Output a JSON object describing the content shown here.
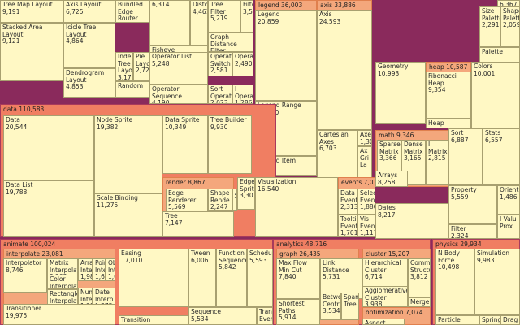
{
  "colors": {
    "background": "#8a2a5c",
    "leaf": "#fff8c4",
    "depth1": "#f07e62",
    "depth2": "#f4a77c",
    "depth3": "#f8c89a",
    "depth1_border": "#a83a5c",
    "depth2_border": "#e0804e",
    "depth3_border": "#d89060"
  },
  "chart_data": {
    "type": "treemap",
    "nodes": [
      {
        "name": "Tree Map Layout",
        "value": "9,191",
        "depth": 4
      },
      {
        "name": "Axis Layout",
        "value": "6,725",
        "depth": 4
      },
      {
        "name": "Bundled Edge Router",
        "value": "3,727",
        "depth": 4
      },
      {
        "name": "Stacked Area Layout",
        "value": "9,121",
        "depth": 4
      },
      {
        "name": "Icicle Tree Layout",
        "value": "4,864",
        "depth": 4
      },
      {
        "name": "Inden Tree Layou",
        "value": "3,174",
        "depth": 4
      },
      {
        "name": "Pie Layo",
        "value": "2,72",
        "depth": 4
      },
      {
        "name": "Dendrogram Layout",
        "value": "4,853",
        "depth": 4
      },
      {
        "name": "Random",
        "value": "",
        "depth": 4
      },
      {
        "name": "",
        "value": "6,314",
        "depth": 4
      },
      {
        "name": "Distortio",
        "value": "4,461",
        "depth": 4
      },
      {
        "name": "Fisheye Distortion",
        "value": "",
        "depth": 4
      },
      {
        "name": "Tree Filter",
        "value": "5,219",
        "depth": 4
      },
      {
        "name": "Filter",
        "value": "3,509",
        "depth": 4
      },
      {
        "name": "Graph Distance Filter",
        "value": "",
        "depth": 4
      },
      {
        "name": "Operator List",
        "value": "5,248",
        "depth": 4
      },
      {
        "name": "Operator Switch",
        "value": "2,581",
        "depth": 4
      },
      {
        "name": "Operator",
        "value": "2,490",
        "depth": 4
      },
      {
        "name": "Operator Sequence",
        "value": "4,190",
        "depth": 4
      },
      {
        "name": "Sort Operator",
        "value": "2,023",
        "depth": 4
      },
      {
        "name": "I Operat",
        "value": "1,286",
        "depth": 4
      },
      {
        "name": "legend",
        "value": "36,003",
        "depth": 2
      },
      {
        "name": "Legend",
        "value": "20,859",
        "depth": 3
      },
      {
        "name": "Legend Range",
        "value": "10,530",
        "depth": 3
      },
      {
        "name": "Legend Item",
        "value": "4,614",
        "depth": 3
      },
      {
        "name": "axis",
        "value": "33,886",
        "depth": 2
      },
      {
        "name": "Axis",
        "value": "24,593",
        "depth": 3
      },
      {
        "name": "Cartesian Axes",
        "value": "6,703",
        "depth": 3
      },
      {
        "name": "Axes",
        "value": "1,302",
        "depth": 3
      },
      {
        "name": "Ax Gri La",
        "value": "",
        "depth": 3
      },
      {
        "name": "data",
        "value": "110,583",
        "depth": 1
      },
      {
        "name": "Data",
        "value": "20,544",
        "depth": 2
      },
      {
        "name": "Node Sprite",
        "value": "19,382",
        "depth": 2
      },
      {
        "name": "Data Sprite",
        "value": "10,349",
        "depth": 2
      },
      {
        "name": "Tree Builder",
        "value": "9,930",
        "depth": 2
      },
      {
        "name": "Data List",
        "value": "19,788",
        "depth": 2
      },
      {
        "name": "Scale Binding",
        "value": "11,275",
        "depth": 2
      },
      {
        "name": "render",
        "value": "8,867",
        "depth": 2
      },
      {
        "name": "Edge Renderer",
        "value": "5,569",
        "depth": 3
      },
      {
        "name": "Shape Rende",
        "value": "2,247",
        "depth": 3
      },
      {
        "name": "Ar Ty",
        "value": "",
        "depth": 3
      },
      {
        "name": "Edge Sprite",
        "value": "3,301",
        "depth": 2
      },
      {
        "name": "Tree",
        "value": "7,147",
        "depth": 2
      },
      {
        "name": "Visualization",
        "value": "16,540",
        "depth": 2
      },
      {
        "name": "events",
        "value": "7,0",
        "depth": 2
      },
      {
        "name": "Data Event",
        "value": "2,313",
        "depth": 3
      },
      {
        "name": "Selec Event",
        "value": "1,880",
        "depth": 3
      },
      {
        "name": "Tooltip Event",
        "value": "1,701",
        "depth": 3
      },
      {
        "name": "Vis Event",
        "value": "1,117",
        "depth": 3
      },
      {
        "name": "",
        "value": "6,367",
        "depth": 2
      },
      {
        "name": "Size Palette",
        "value": "2,291",
        "depth": 2
      },
      {
        "name": "Shape Palette",
        "value": "2,059",
        "depth": 2
      },
      {
        "name": "Palette",
        "value": "",
        "depth": 2
      },
      {
        "name": "Geometry",
        "value": "10,993",
        "depth": 2
      },
      {
        "name": "heap",
        "value": "10,587",
        "depth": 2
      },
      {
        "name": "Fibonacci Heap",
        "value": "9,354",
        "depth": 3
      },
      {
        "name": "Heap",
        "value": "",
        "depth": 3
      },
      {
        "name": "Colors",
        "value": "10,001",
        "depth": 2
      },
      {
        "name": "math",
        "value": "9,346",
        "depth": 2
      },
      {
        "name": "Sparse Matrix",
        "value": "3,366",
        "depth": 3
      },
      {
        "name": "Dense Matrix",
        "value": "3,165",
        "depth": 3
      },
      {
        "name": "I Matrix",
        "value": "2,815",
        "depth": 3
      },
      {
        "name": "Sort",
        "value": "6,887",
        "depth": 2
      },
      {
        "name": "Stats",
        "value": "6,557",
        "depth": 2
      },
      {
        "name": "Arrays",
        "value": "8,258",
        "depth": 2
      },
      {
        "name": "Dates",
        "value": "8,217",
        "depth": 2
      },
      {
        "name": "Property",
        "value": "5,559",
        "depth": 2
      },
      {
        "name": "Orient",
        "value": "1,486",
        "depth": 2
      },
      {
        "name": "Filter",
        "value": "2,324",
        "depth": 2
      },
      {
        "name": "I Valu Prox",
        "value": "",
        "depth": 2
      },
      {
        "name": "animate",
        "value": "100,024",
        "depth": 1
      },
      {
        "name": "interpolate",
        "value": "23,081",
        "depth": 2
      },
      {
        "name": "Interpolator",
        "value": "8,746",
        "depth": 3
      },
      {
        "name": "Matrix Interpolator",
        "value": "2,202",
        "depth": 3
      },
      {
        "name": "Array Interpol",
        "value": "1,983",
        "depth": 3
      },
      {
        "name": "Point Interpol",
        "value": "1,675",
        "depth": 3
      },
      {
        "name": "Obje Interp",
        "value": "1,629",
        "depth": 3
      },
      {
        "name": "Color Interpolator",
        "value": "2,047",
        "depth": 3
      },
      {
        "name": "Rectangle Interpolator",
        "value": "2,042",
        "depth": 3
      },
      {
        "name": "Numbe Interp",
        "value": "1,382",
        "depth": 3
      },
      {
        "name": "Date Interp",
        "value": "1,375",
        "depth": 3
      },
      {
        "name": "Transitioner",
        "value": "19,975",
        "depth": 2
      },
      {
        "name": "Easing",
        "value": "17,010",
        "depth": 2
      },
      {
        "name": "Tween",
        "value": "6,006",
        "depth": 2
      },
      {
        "name": "Function Sequence",
        "value": "5,842",
        "depth": 2
      },
      {
        "name": "Scheduler",
        "value": "5,593",
        "depth": 2
      },
      {
        "name": "Transition",
        "value": "",
        "depth": 2
      },
      {
        "name": "Sequence",
        "value": "5,534",
        "depth": 2
      },
      {
        "name": "Transi Events",
        "value": "",
        "depth": 2
      },
      {
        "name": "analytics",
        "value": "48,716",
        "depth": 1
      },
      {
        "name": "graph",
        "value": "26,435",
        "depth": 2
      },
      {
        "name": "Max Flow Min Cut",
        "value": "7,840",
        "depth": 3
      },
      {
        "name": "Link Distance",
        "value": "5,731",
        "depth": 3
      },
      {
        "name": "Between Centrali",
        "value": "3,534",
        "depth": 3
      },
      {
        "name": "Spanni Tree",
        "value": "",
        "depth": 3
      },
      {
        "name": "Shortest Paths",
        "value": "5,914",
        "depth": 3
      },
      {
        "name": "cluster",
        "value": "15,207",
        "depth": 2
      },
      {
        "name": "Hierarchical Cluster",
        "value": "6,714",
        "depth": 3
      },
      {
        "name": "Commu Structu",
        "value": "3,812",
        "depth": 3
      },
      {
        "name": "Agglomerative Cluster",
        "value": "3,938",
        "depth": 3
      },
      {
        "name": "Merge",
        "value": "",
        "depth": 3
      },
      {
        "name": "optimization",
        "value": "7,074",
        "depth": 2
      },
      {
        "name": "Aspect",
        "value": "",
        "depth": 3
      },
      {
        "name": "physics",
        "value": "29,934",
        "depth": 1
      },
      {
        "name": "N Body Force",
        "value": "10,498",
        "depth": 2
      },
      {
        "name": "Simulation",
        "value": "9,983",
        "depth": 2
      },
      {
        "name": "Particle",
        "value": "",
        "depth": 2
      },
      {
        "name": "Spring",
        "value": "",
        "depth": 2
      },
      {
        "name": "Drag",
        "value": "",
        "depth": 2
      }
    ]
  }
}
